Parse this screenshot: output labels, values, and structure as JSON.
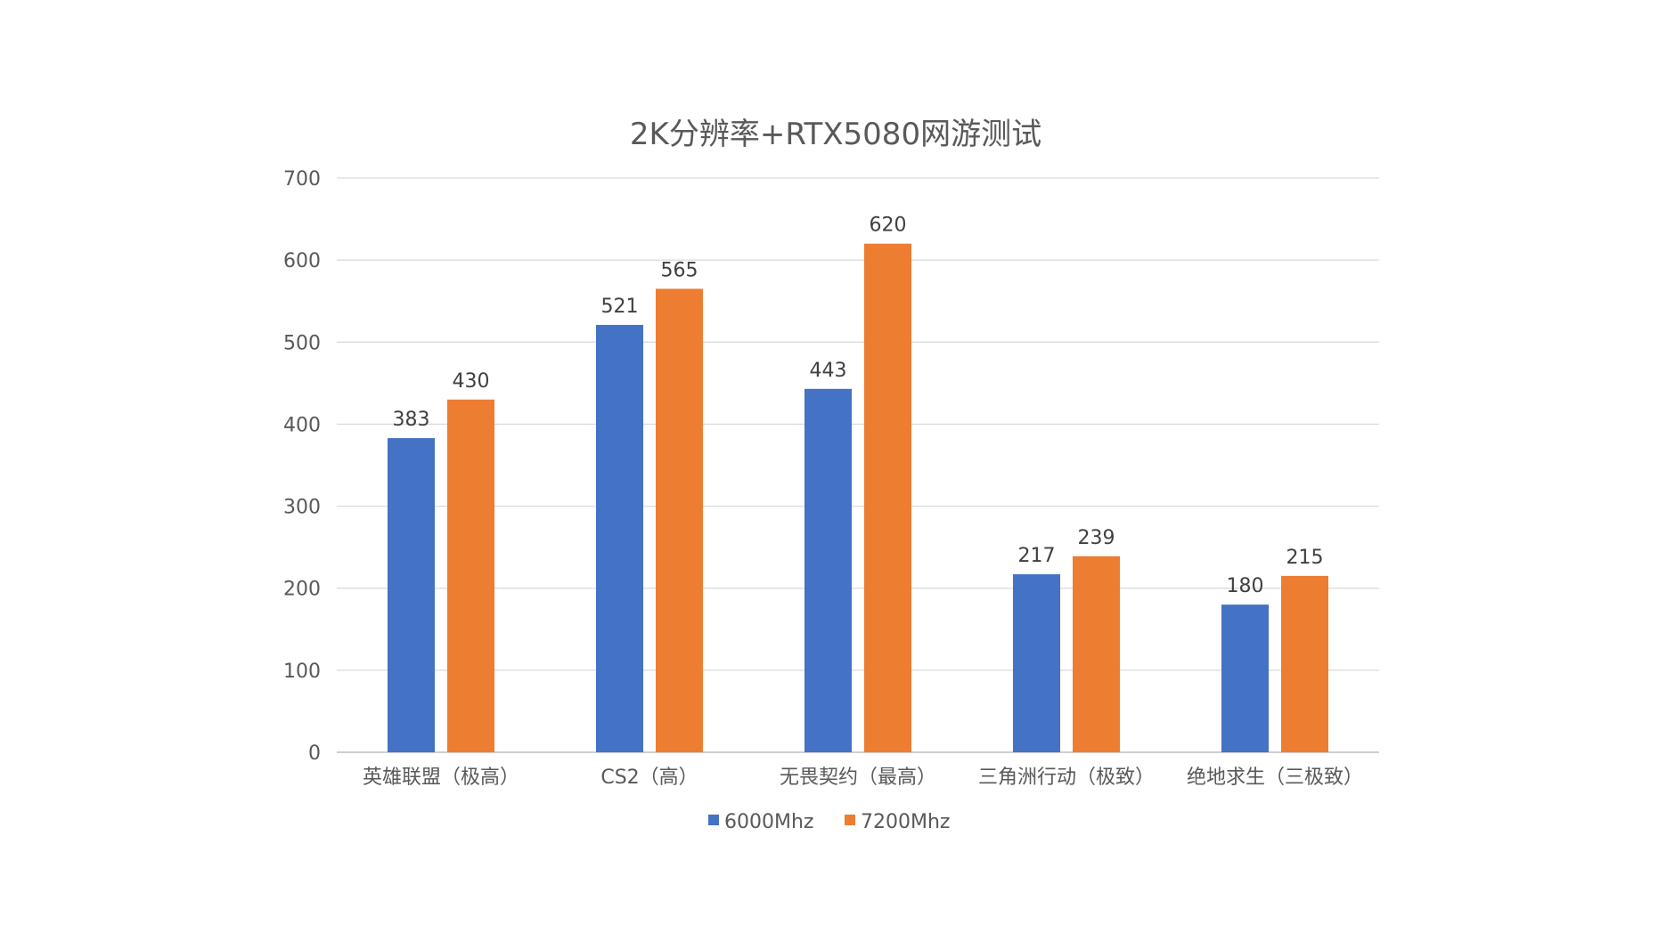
{
  "chart_data": {
    "type": "bar",
    "title": "2K分辨率+RTX5080网游测试",
    "xlabel": "",
    "ylabel": "",
    "categories": [
      "英雄联盟（极高）",
      "CS2（高）",
      "无畏契约（最高）",
      "三角洲行动（极致）",
      "绝地求生（三极致）"
    ],
    "series": [
      {
        "name": "6000Mhz",
        "values": [
          383,
          521,
          443,
          217,
          180
        ],
        "color": "#4472c4"
      },
      {
        "name": "7200Mhz",
        "values": [
          430,
          565,
          620,
          239,
          215
        ],
        "color": "#ed7d31"
      }
    ],
    "ylim": [
      0,
      700
    ],
    "yticks": [
      0,
      100,
      200,
      300,
      400,
      500,
      600,
      700
    ],
    "grid": true,
    "legend_position": "bottom",
    "data_labels": true
  }
}
